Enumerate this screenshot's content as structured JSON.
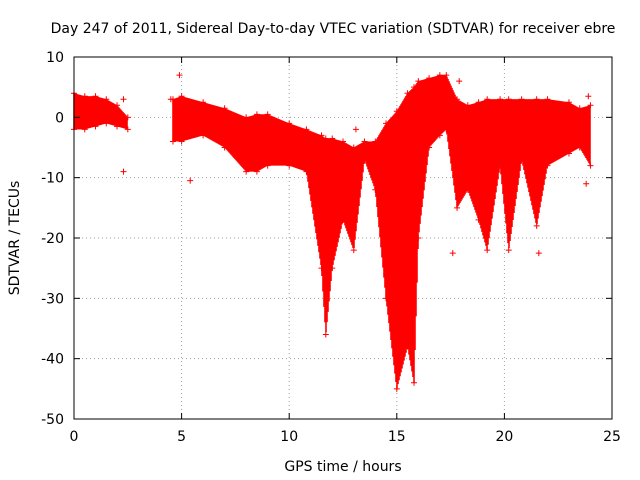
{
  "chart_data": {
    "type": "scatter",
    "title": "Day 247 of 2011, Sidereal Day-to-day VTEC variation (SDTVAR) for receiver ebre",
    "xlabel": "GPS time / hours",
    "ylabel": "SDTVAR / TECUs",
    "xlim": [
      0,
      25
    ],
    "ylim": [
      -50,
      10
    ],
    "xticks": [
      0,
      5,
      10,
      15,
      20,
      25
    ],
    "yticks": [
      -50,
      -40,
      -30,
      -20,
      -10,
      0,
      10
    ],
    "x_tick_labels": [
      "0",
      "5",
      "10",
      "15",
      "20",
      "25"
    ],
    "y_tick_labels": [
      "-50",
      "-40",
      "-30",
      "-20",
      "-10",
      "0",
      "10"
    ],
    "grid": true,
    "marker": "+",
    "color": "#ff0000",
    "series": [
      {
        "name": "SDTVAR",
        "band": [
          {
            "x": 0.0,
            "lo": -2,
            "hi": 4
          },
          {
            "x": 0.5,
            "lo": -2,
            "hi": 3.5
          },
          {
            "x": 1.0,
            "lo": -1.5,
            "hi": 3.5
          },
          {
            "x": 1.5,
            "lo": -1,
            "hi": 3
          },
          {
            "x": 2.0,
            "lo": -1.5,
            "hi": 2
          },
          {
            "x": 2.5,
            "lo": -2,
            "hi": 0
          },
          {
            "x": 4.6,
            "lo": -4,
            "hi": 3
          },
          {
            "x": 5.0,
            "lo": -4,
            "hi": 3.5
          },
          {
            "x": 6.0,
            "lo": -3,
            "hi": 2.5
          },
          {
            "x": 7.0,
            "lo": -5,
            "hi": 1.5
          },
          {
            "x": 8.0,
            "lo": -9,
            "hi": 0
          },
          {
            "x": 8.5,
            "lo": -9,
            "hi": 0.5
          },
          {
            "x": 9.0,
            "lo": -8,
            "hi": 0.5
          },
          {
            "x": 10.0,
            "lo": -8,
            "hi": -1
          },
          {
            "x": 10.8,
            "lo": -9,
            "hi": -2
          },
          {
            "x": 11.5,
            "lo": -25,
            "hi": -3
          },
          {
            "x": 11.7,
            "lo": -36,
            "hi": -3.5
          },
          {
            "x": 12.0,
            "lo": -25,
            "hi": -3.5
          },
          {
            "x": 12.5,
            "lo": -17,
            "hi": -4
          },
          {
            "x": 13.0,
            "lo": -22,
            "hi": -5
          },
          {
            "x": 13.5,
            "lo": -7,
            "hi": -4
          },
          {
            "x": 14.0,
            "lo": -12,
            "hi": -4
          },
          {
            "x": 14.5,
            "lo": -30,
            "hi": -1
          },
          {
            "x": 15.0,
            "lo": -45,
            "hi": 1
          },
          {
            "x": 15.5,
            "lo": -38,
            "hi": 4
          },
          {
            "x": 15.8,
            "lo": -44,
            "hi": 5
          },
          {
            "x": 16.0,
            "lo": -20,
            "hi": 6
          },
          {
            "x": 16.5,
            "lo": -5,
            "hi": 6.5
          },
          {
            "x": 17.0,
            "lo": -3,
            "hi": 7
          },
          {
            "x": 17.3,
            "lo": -2,
            "hi": 7
          },
          {
            "x": 17.8,
            "lo": -15,
            "hi": 3
          },
          {
            "x": 18.3,
            "lo": -12,
            "hi": 2
          },
          {
            "x": 18.8,
            "lo": -17,
            "hi": 2.5
          },
          {
            "x": 19.2,
            "lo": -22,
            "hi": 3
          },
          {
            "x": 19.8,
            "lo": -8,
            "hi": 3
          },
          {
            "x": 20.2,
            "lo": -22,
            "hi": 3
          },
          {
            "x": 20.8,
            "lo": -7,
            "hi": 3
          },
          {
            "x": 21.5,
            "lo": -18,
            "hi": 3
          },
          {
            "x": 22.0,
            "lo": -8,
            "hi": 3
          },
          {
            "x": 23.0,
            "lo": -6,
            "hi": 2.5
          },
          {
            "x": 23.5,
            "lo": -5,
            "hi": 1.5
          },
          {
            "x": 24.0,
            "lo": -8,
            "hi": 2
          }
        ],
        "outliers": [
          {
            "x": 2.3,
            "y": -9
          },
          {
            "x": 2.3,
            "y": 3
          },
          {
            "x": 4.5,
            "y": 3
          },
          {
            "x": 4.9,
            "y": 7
          },
          {
            "x": 5.4,
            "y": -10.5
          },
          {
            "x": 13.1,
            "y": -2
          },
          {
            "x": 17.6,
            "y": -22.5
          },
          {
            "x": 17.9,
            "y": 6
          },
          {
            "x": 21.6,
            "y": -22.5
          },
          {
            "x": 23.8,
            "y": -11
          },
          {
            "x": 23.9,
            "y": 3.5
          }
        ]
      }
    ]
  }
}
